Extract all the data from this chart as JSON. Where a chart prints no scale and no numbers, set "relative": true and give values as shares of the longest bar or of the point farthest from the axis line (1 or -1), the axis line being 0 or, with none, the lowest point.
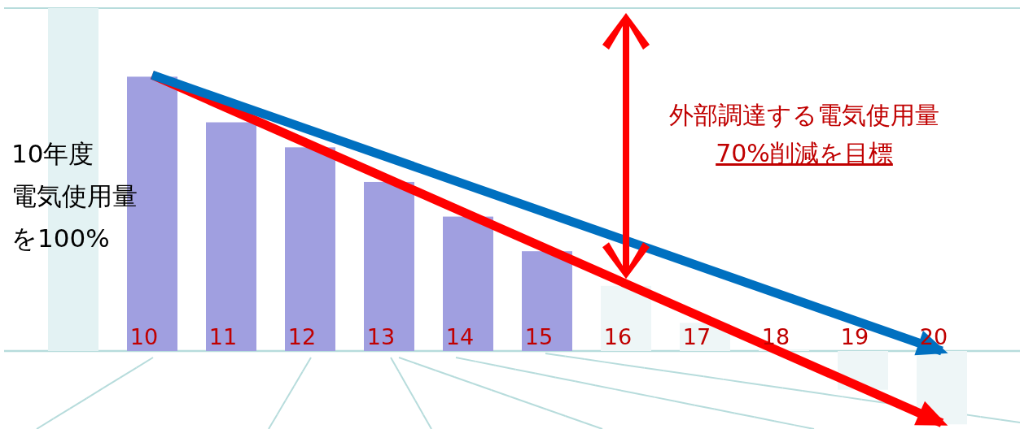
{
  "chart_data": {
    "type": "bar",
    "relative": true,
    "categories": [
      null,
      "10",
      "11",
      "12",
      "13",
      "14",
      "15",
      "16",
      "17",
      "18",
      "19",
      "20"
    ],
    "series": [
      {
        "colors": [
          "#e3f2f3",
          "#a09fe0",
          "#a09fe0",
          "#a09fe0",
          "#a09fe0",
          "#a09fe0",
          "#a09fe0",
          "#eef6f7",
          "#eef6f7",
          "#eef6f7",
          "#eef6f7",
          "#eef6f7"
        ],
        "values": [
          1,
          0.8,
          0.667,
          0.594,
          0.493,
          0.392,
          0.291,
          0.19,
          0.082,
          0.005,
          -0.113,
          -0.214
        ]
      },
      {
        "type": "line",
        "x": [
          "10",
          "20"
        ],
        "values": [
          0.805,
          -0.21
        ],
        "color": "#ff0000"
      },
      {
        "type": "line",
        "x": [
          "10",
          "20"
        ],
        "values": [
          0.805,
          0
        ],
        "color": "#0070c0"
      }
    ],
    "ref_lines": [
      {
        "axis": "y",
        "value": 1,
        "color": "#b7dcdc"
      }
    ],
    "annotations": [
      "10年度",
      "電気使用量",
      "を100%",
      "外部調達する電気使用量",
      "70%削減を目標"
    ]
  }
}
